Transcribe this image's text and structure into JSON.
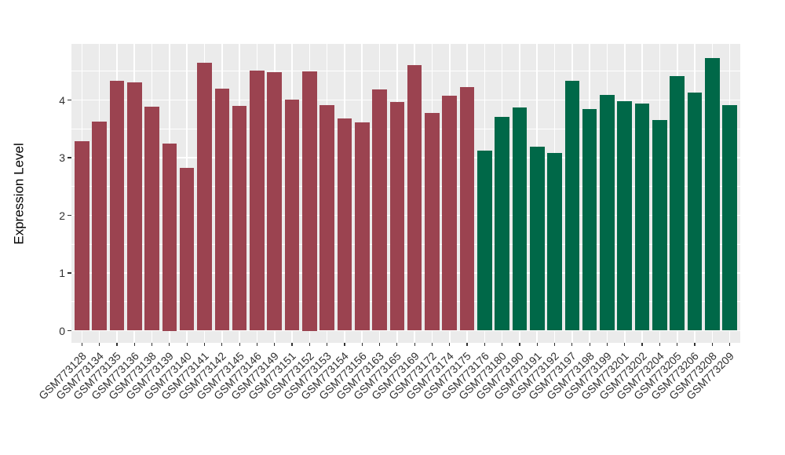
{
  "chart_data": {
    "type": "bar",
    "title": "",
    "xlabel": "",
    "ylabel": "Expression Level",
    "ylim": [
      0,
      4.97
    ],
    "yticks": [
      0,
      1,
      2,
      3,
      4
    ],
    "yticks_minor": [
      0.5,
      1.5,
      2.5,
      3.5,
      4.5
    ],
    "grid": "major-and-minor-white-on-gray",
    "legend_position": "none",
    "panel_background": "#EBEBEB",
    "gridline_color": "#FFFFFF",
    "axis_text_color": "#303030",
    "tick_mark_color": "#333333",
    "groups": [
      {
        "name": "group-1-maroon",
        "color": "#9B4350"
      },
      {
        "name": "group-2-green",
        "color": "#006848"
      }
    ],
    "bars": [
      {
        "label": "GSM773128",
        "value": 3.28,
        "group": 0
      },
      {
        "label": "GSM773134",
        "value": 3.63,
        "group": 0
      },
      {
        "label": "GSM773135",
        "value": 4.33,
        "group": 0
      },
      {
        "label": "GSM773136",
        "value": 4.31,
        "group": 0
      },
      {
        "label": "GSM773138",
        "value": 3.88,
        "group": 0
      },
      {
        "label": "GSM773139",
        "value": 3.25,
        "group": 0
      },
      {
        "label": "GSM773140",
        "value": 2.82,
        "group": 0
      },
      {
        "label": "GSM773141",
        "value": 4.64,
        "group": 0
      },
      {
        "label": "GSM773142",
        "value": 4.2,
        "group": 0
      },
      {
        "label": "GSM773145",
        "value": 3.9,
        "group": 0
      },
      {
        "label": "GSM773146",
        "value": 4.51,
        "group": 0
      },
      {
        "label": "GSM773149",
        "value": 4.48,
        "group": 0
      },
      {
        "label": "GSM773151",
        "value": 4.01,
        "group": 0
      },
      {
        "label": "GSM773152",
        "value": 4.5,
        "group": 0
      },
      {
        "label": "GSM773153",
        "value": 3.91,
        "group": 0
      },
      {
        "label": "GSM773154",
        "value": 3.68,
        "group": 0
      },
      {
        "label": "GSM773156",
        "value": 3.61,
        "group": 0
      },
      {
        "label": "GSM773163",
        "value": 4.18,
        "group": 0
      },
      {
        "label": "GSM773165",
        "value": 3.97,
        "group": 0
      },
      {
        "label": "GSM773169",
        "value": 4.6,
        "group": 0
      },
      {
        "label": "GSM773172",
        "value": 3.78,
        "group": 0
      },
      {
        "label": "GSM773174",
        "value": 4.08,
        "group": 0
      },
      {
        "label": "GSM773175",
        "value": 4.23,
        "group": 0
      },
      {
        "label": "GSM773176",
        "value": 3.12,
        "group": 1
      },
      {
        "label": "GSM773180",
        "value": 3.71,
        "group": 1
      },
      {
        "label": "GSM773190",
        "value": 3.87,
        "group": 1
      },
      {
        "label": "GSM773191",
        "value": 3.19,
        "group": 1
      },
      {
        "label": "GSM773192",
        "value": 3.08,
        "group": 1
      },
      {
        "label": "GSM773197",
        "value": 4.34,
        "group": 1
      },
      {
        "label": "GSM773198",
        "value": 3.84,
        "group": 1
      },
      {
        "label": "GSM773199",
        "value": 4.09,
        "group": 1
      },
      {
        "label": "GSM773201",
        "value": 3.98,
        "group": 1
      },
      {
        "label": "GSM773202",
        "value": 3.94,
        "group": 1
      },
      {
        "label": "GSM773204",
        "value": 3.65,
        "group": 1
      },
      {
        "label": "GSM773205",
        "value": 4.41,
        "group": 1
      },
      {
        "label": "GSM773206",
        "value": 4.13,
        "group": 1
      },
      {
        "label": "GSM773208",
        "value": 4.73,
        "group": 1
      },
      {
        "label": "GSM773209",
        "value": 3.91,
        "group": 1
      }
    ]
  }
}
